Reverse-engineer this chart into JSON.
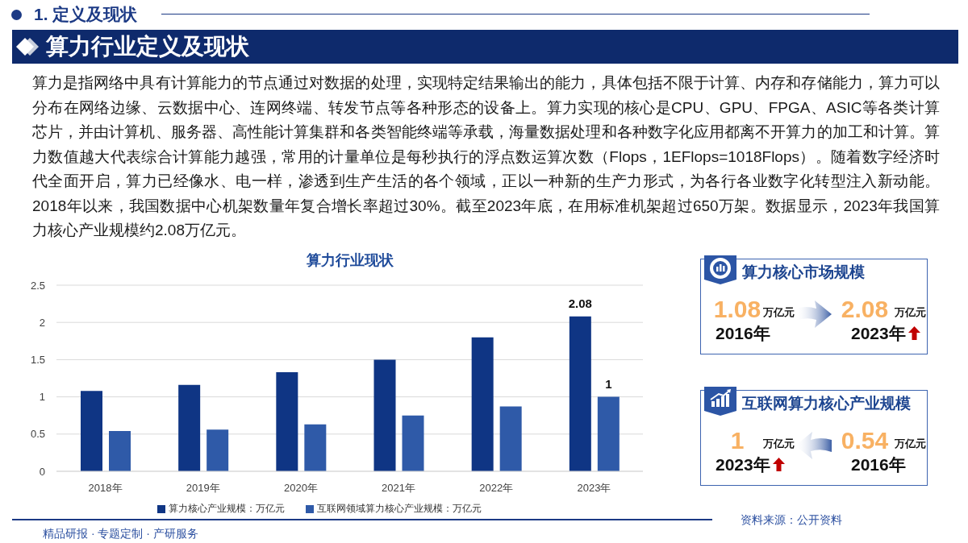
{
  "chart_data": [
    {
      "type": "other",
      "subtitle": "1. 定义及现状",
      "title": "算力行业定义及现状",
      "annotations": [
        "算力是指网络中具有计算能力的节点通过对数据的处理，实现特定结果输出的能力，具体包括不限于计算、内存和存储能力，算力可以分布在网络边缘、云数据中心、连网终端、转发节点等各种形态的设备上。算力实现的核心是CPU、GPU、FPGA、ASIC等各类计算芯片，并由计算机、服务器、高性能计算集群和各类智能终端等承载，海量数据处理和各种数字化应用都离不开算力的加工和计算。算力数值越大代表综合计算能力越强，常用的计量单位是每秒执行的浮点数运算次数（Flops，1EFlops=1018Flops）。随着数字经济时代全面开启，算力已经像水、电一样，渗透到生产生活的各个领域，正以一种新的生产力形式，为各行各业数字化转型注入新动能。2018年以来，我国数据中心机架数量年复合增长率超过30%。截至2023年底，在用标准机架超过650万架。数据显示，2023年我国算力核心产业规模约2.08万亿元。"
      ]
    },
    {
      "type": "bar",
      "title": "算力行业现状",
      "categories": [
        "2018年",
        "2019年",
        "2020年",
        "2021年",
        "2022年",
        "2023年"
      ],
      "series": [
        {
          "name": "算力核心产业规模：万亿元",
          "color": "#0f3584",
          "values": [
            1.08,
            1.16,
            1.33,
            1.5,
            1.8,
            2.08
          ],
          "value_labels": [
            null,
            null,
            null,
            null,
            null,
            "2.08"
          ]
        },
        {
          "name": "互联网领域算力核心产业规模：万亿元",
          "color": "#2f5aa8",
          "values": [
            0.54,
            0.56,
            0.63,
            0.75,
            0.87,
            1
          ],
          "value_labels": [
            null,
            null,
            null,
            null,
            null,
            "1"
          ]
        }
      ],
      "ylim": [
        0,
        2.5
      ],
      "yticks": [
        0,
        0.5,
        1,
        1.5,
        2,
        2.5
      ],
      "grid": "y",
      "legend": "bottom"
    },
    {
      "type": "other",
      "title": "算力核心市场规模",
      "annotations": [
        "1.08",
        "万亿元",
        "2016年",
        "2.08",
        "万亿元",
        "2023年"
      ]
    },
    {
      "type": "other",
      "title": "互联网算力核心产业规模",
      "annotations": [
        "1",
        "万亿元",
        "2023年",
        "0.54",
        "万亿元",
        "2016年"
      ]
    },
    {
      "type": "other",
      "annotations": [
        "精品研报 · 专题定制 · 产研服务",
        "资料来源：公开资料"
      ]
    }
  ]
}
